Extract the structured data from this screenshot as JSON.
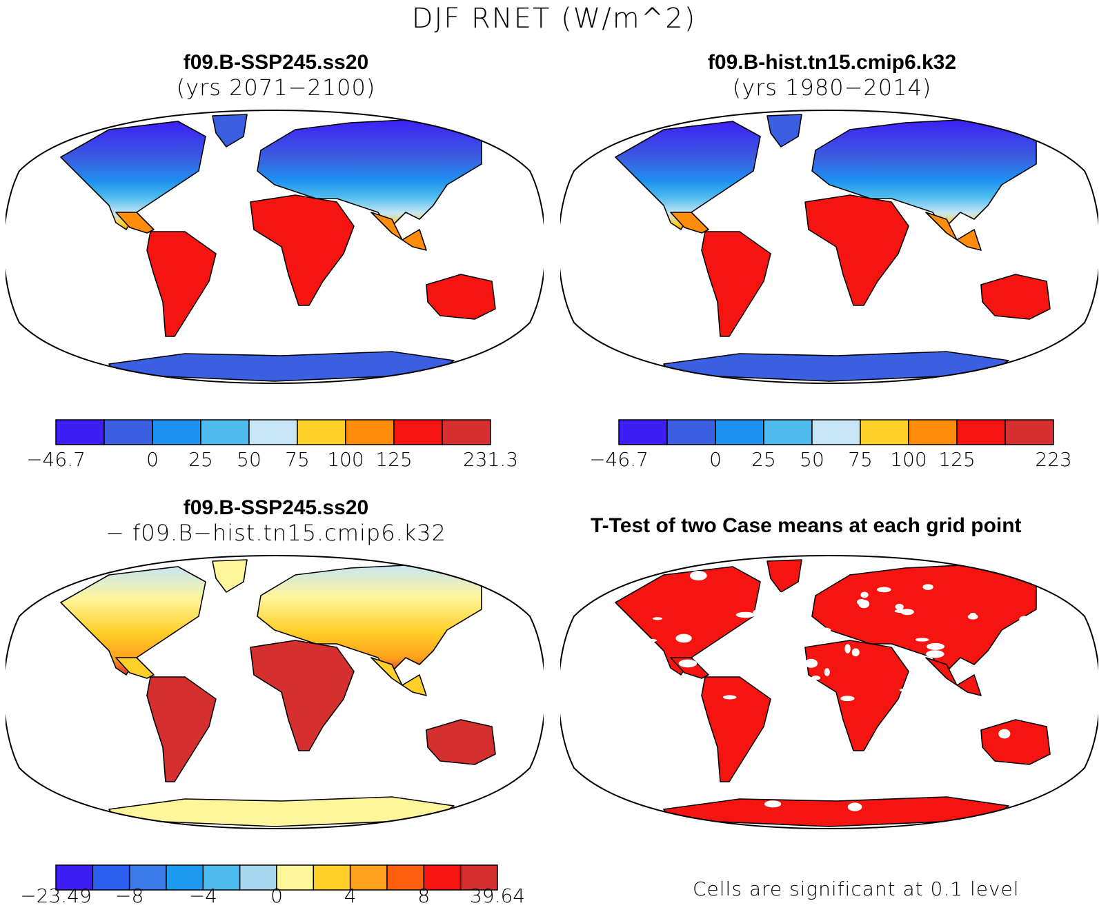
{
  "figure": {
    "title": "DJF RNET (W/m^2)"
  },
  "panels": [
    {
      "title": "f09.B-SSP245.ss20",
      "subtitle": "(yrs 2071−2100)",
      "colorbar": {
        "labels": [
          "−46.7",
          "0",
          "25",
          "50",
          "75",
          "100",
          "125",
          "231.3"
        ],
        "colors": [
          "#3d1ff5",
          "#3a5fe0",
          "#1e90f0",
          "#4dbbee",
          "#c6e6f5",
          "#ffd02a",
          "#ff8c0a",
          "#f51410",
          "#d52f2f"
        ]
      }
    },
    {
      "title": "f09.B-hist.tn15.cmip6.k32",
      "subtitle": "(yrs 1980−2014)",
      "colorbar": {
        "labels": [
          "−46.7",
          "0",
          "25",
          "50",
          "75",
          "100",
          "125",
          "223"
        ],
        "colors": [
          "#3d1ff5",
          "#3a5fe0",
          "#1e90f0",
          "#4dbbee",
          "#c6e6f5",
          "#ffd02a",
          "#ff8c0a",
          "#f51410",
          "#d52f2f"
        ]
      }
    },
    {
      "title": "f09.B-SSP245.ss20",
      "subtitle": "− f09.B−hist.tn15.cmip6.k32",
      "colorbar": {
        "labels": [
          "−23.49",
          "−8",
          "−4",
          "0",
          "4",
          "8",
          "39.64"
        ],
        "colors": [
          "#3d1ff5",
          "#2a5ff0",
          "#3a7ae8",
          "#1e9af0",
          "#4dbbee",
          "#a8d8f0",
          "#fff59a",
          "#ffd02a",
          "#ffa01a",
          "#ff6010",
          "#f51410",
          "#d52f2f"
        ]
      }
    },
    {
      "title": "T-Test of two Case means at each grid point",
      "note": "Cells are significant at 0.1 level"
    }
  ]
}
